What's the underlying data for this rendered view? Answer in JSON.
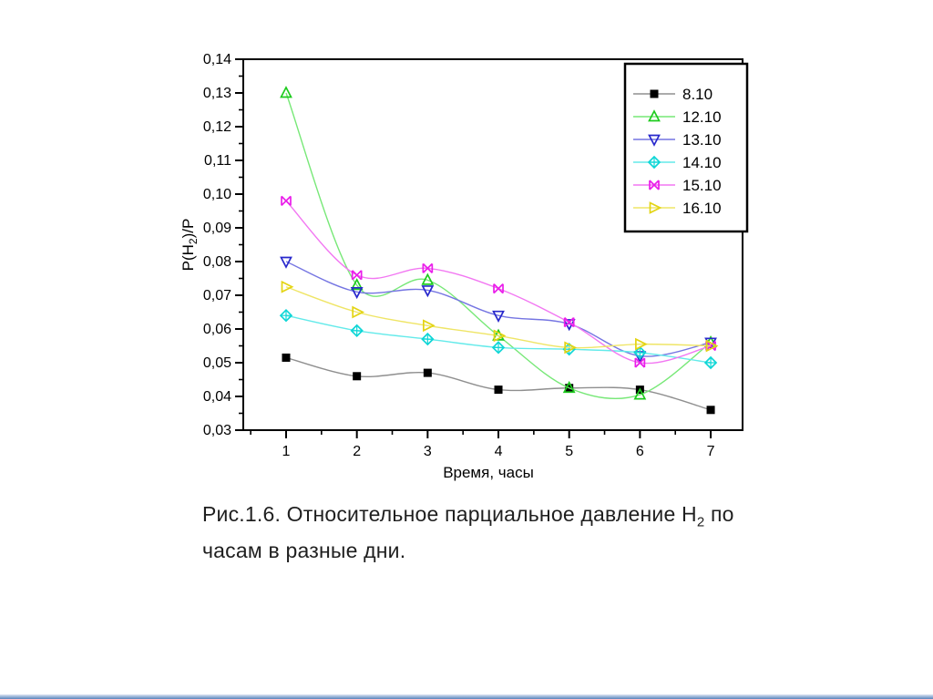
{
  "caption": {
    "line1_pre": "Рис.1.6. Относительное парциальное давление  H",
    "line1_sub": "2",
    "line1_post": " по",
    "line2": "часам в разные дни."
  },
  "accent": {
    "bottom_bar_color": "#5b84bb"
  },
  "chart_data": {
    "type": "line",
    "title": "",
    "xlabel": "Время, часы",
    "ylabel_parts": {
      "pre": "P(H",
      "sub": "2",
      "post": ")/P"
    },
    "x": [
      1,
      2,
      3,
      4,
      5,
      6,
      7
    ],
    "x_tick_labels": [
      "1",
      "2",
      "3",
      "4",
      "5",
      "6",
      "7"
    ],
    "y_tick_labels": [
      "0,14",
      "0,13",
      "0,12",
      "0,11",
      "0,10",
      "0,09",
      "0,08",
      "0,07",
      "0,06",
      "0,05",
      "0,04",
      "0,03"
    ],
    "y_ticks": [
      0.14,
      0.13,
      0.12,
      0.11,
      0.1,
      0.09,
      0.08,
      0.07,
      0.06,
      0.05,
      0.04,
      0.03
    ],
    "y_minor_ticks": [
      0.135,
      0.125,
      0.115,
      0.105,
      0.095,
      0.085,
      0.075,
      0.065,
      0.055,
      0.045,
      0.035
    ],
    "x_minor_ticks": [
      0.5,
      1.5,
      2.5,
      3.5,
      4.5,
      5.5,
      6.5
    ],
    "xlim": [
      0.395,
      7.45
    ],
    "ylim": [
      0.03,
      0.14
    ],
    "grid": false,
    "legend_position": "top-right",
    "axis_color": "#000000",
    "series": [
      {
        "name": "8.10",
        "marker": "square-filled",
        "color": "#000000",
        "line_color": "#8f8f8f",
        "values": [
          0.0515,
          0.046,
          0.047,
          0.042,
          0.0425,
          0.042,
          0.036
        ]
      },
      {
        "name": "12.10",
        "marker": "triangle-up",
        "color": "#1ecb1e",
        "line_color": "#77e877",
        "values": [
          0.13,
          0.073,
          0.0745,
          0.058,
          0.0425,
          0.0405,
          0.056
        ]
      },
      {
        "name": "13.10",
        "marker": "triangle-down",
        "color": "#2828cc",
        "line_color": "#7575e2",
        "values": [
          0.08,
          0.071,
          0.0715,
          0.064,
          0.0615,
          0.052,
          0.056
        ]
      },
      {
        "name": "14.10",
        "marker": "diamond-plus",
        "color": "#0fd6d6",
        "line_color": "#63eaea",
        "values": [
          0.064,
          0.0595,
          0.057,
          0.0545,
          0.054,
          0.053,
          0.05
        ]
      },
      {
        "name": "15.10",
        "marker": "bowtie-x",
        "color": "#ea1eea",
        "line_color": "#f277f2",
        "values": [
          0.098,
          0.076,
          0.078,
          0.072,
          0.062,
          0.05,
          0.055
        ]
      },
      {
        "name": "16.10",
        "marker": "triangle-right",
        "color": "#e3d413",
        "line_color": "#efe566",
        "values": [
          0.0725,
          0.065,
          0.061,
          0.058,
          0.0545,
          0.0555,
          0.055
        ]
      }
    ]
  }
}
